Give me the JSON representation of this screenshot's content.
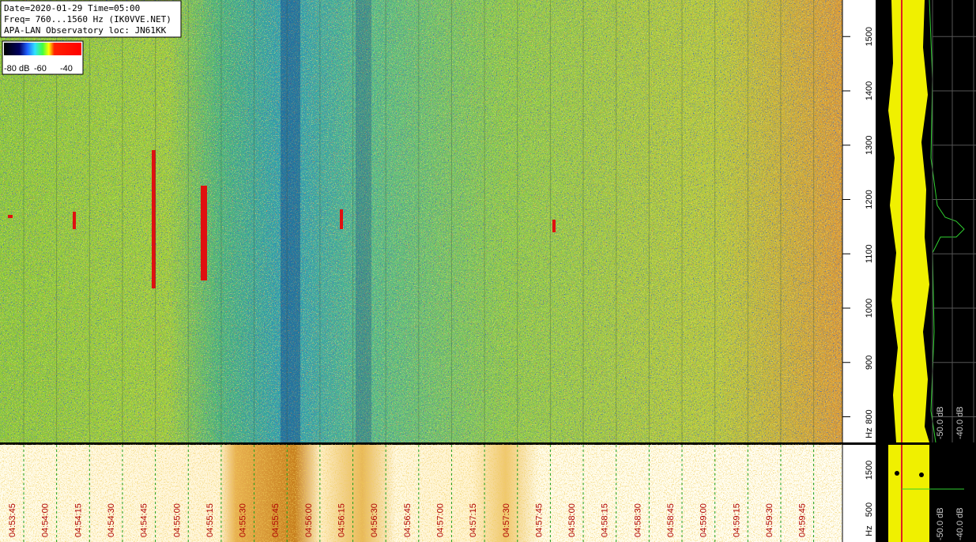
{
  "info": {
    "lines": [
      "Date=2020-01-29 Time=05:00",
      "Freq= 760...1560 Hz (IK0VVE.NET)",
      "APA-LAN Observatory loc: JN61KK"
    ]
  },
  "colorbar": {
    "labels": [
      "-80 dB",
      "-60",
      "-40"
    ]
  },
  "waterfall": {
    "freq_range": [
      760,
      1560
    ],
    "freq_ticks": [
      800,
      900,
      1000,
      1100,
      1200,
      1300,
      1400,
      1500
    ],
    "unit": "Hz"
  },
  "lower": {
    "freq_labels": [
      "1500",
      "500",
      "Hz"
    ]
  },
  "times": [
    "04:53:45",
    "04:54:00",
    "04:54:15",
    "04:54:30",
    "04:54:45",
    "04:55:00",
    "04:55:15",
    "04:55:30",
    "04:55:45",
    "04:56:00",
    "04:56:15",
    "04:56:30",
    "04:56:45",
    "04:57:00",
    "04:57:15",
    "04:57:30",
    "04:57:45",
    "04:58:00",
    "04:58:15",
    "04:58:30",
    "04:58:45",
    "04:59:00",
    "04:59:15",
    "04:59:30",
    "04:59:45"
  ],
  "spectrum_db_labels": [
    "-50.0 dB",
    "-40.0 dB"
  ],
  "lower_db_labels": [
    "-50.0 dB",
    "-40.0 dB"
  ]
}
